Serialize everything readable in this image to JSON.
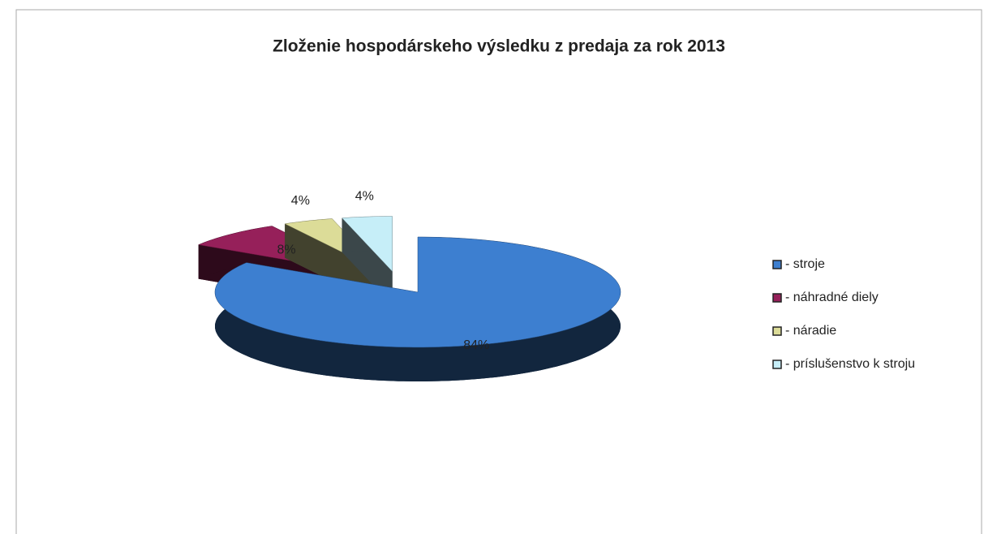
{
  "chart_data": {
    "type": "pie3d",
    "title": "Zloženie hospodárskeho výsledku z predaja za rok 2013",
    "categories": [
      "- stroje",
      "- náhradné diely",
      "- náradie",
      "- príslušenstvo k stroju"
    ],
    "values": [
      84,
      8,
      4,
      4
    ],
    "value_labels": [
      "84%",
      "8%",
      "4%",
      "4%"
    ],
    "colors": [
      "#3d7fd0",
      "#96205a",
      "#dcdc98",
      "#c6eef8"
    ],
    "legend": "right"
  }
}
